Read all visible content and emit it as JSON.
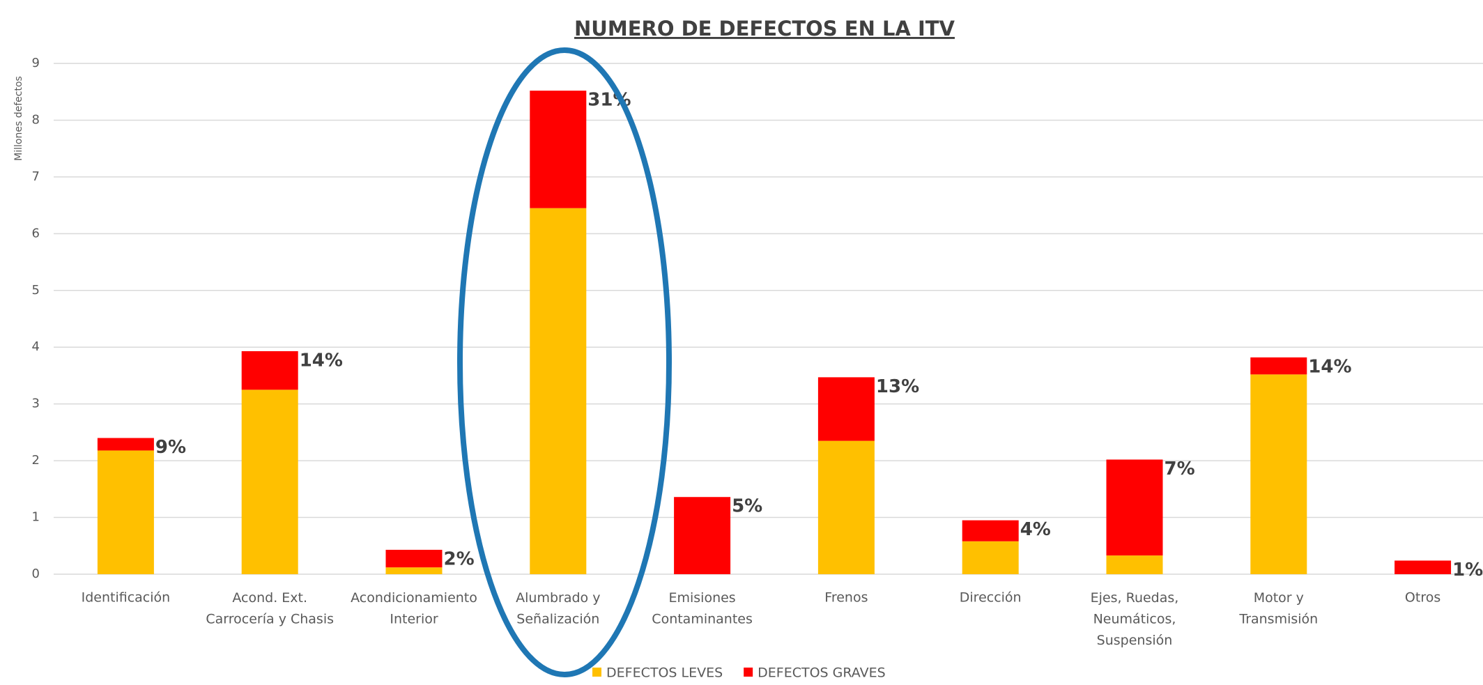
{
  "chart_data": {
    "type": "stacked_bar",
    "title": "NUMERO DE DEFECTOS EN LA ITV",
    "y_label": "Millones defectos",
    "categories": [
      "Identificación",
      "Acond. Ext.\nCarrocería y Chasis",
      "Acondicionamiento\nInterior",
      "Alumbrado y\nSeñalización",
      "Emisiones\nContaminantes",
      "Frenos",
      "Dirección",
      "Ejes, Ruedas,\nNeumáticos,\nSuspensión",
      "Motor y\nTransmisión",
      "Otros"
    ],
    "series": [
      {
        "name": "DEFECTOS LEVES",
        "color": "#ffc000",
        "values": [
          2.18,
          3.25,
          0.12,
          6.45,
          0,
          2.35,
          0.58,
          0.33,
          3.52,
          0
        ]
      },
      {
        "name": "DEFECTOS GRAVES",
        "color": "#ff0000",
        "values": [
          0.22,
          0.68,
          0.31,
          2.07,
          1.36,
          1.12,
          0.37,
          1.69,
          0.3,
          0.24
        ]
      }
    ],
    "share_labels": [
      "9%",
      "14%",
      "2%",
      "31%",
      "5%",
      "13%",
      "4%",
      "7%",
      "14%",
      "1%"
    ],
    "ylim": [
      0,
      9
    ],
    "yticks": [
      0,
      1,
      2,
      3,
      4,
      5,
      6,
      7,
      8,
      9
    ],
    "grid": true,
    "legend": "bottom"
  }
}
